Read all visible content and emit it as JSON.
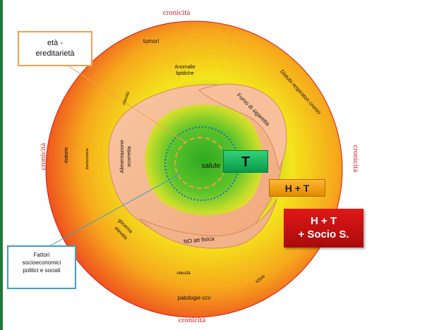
{
  "outer_labels": {
    "top": "cronicità",
    "left": "cronicità",
    "right": "cronicità",
    "bottom": "cronicità"
  },
  "ring_labels": {
    "tumori": "tumori",
    "anomalie_1": "Anomalie",
    "anomalie_2": "lipidiche",
    "obesita_top": "obesità",
    "distubi": "Distubi respiratori cronici",
    "diabete": "diabete",
    "ipertensione": "ipertensione",
    "glicemia_1": "glicemia",
    "glicemia_2": "elevata",
    "obesita_bottom": "obesità",
    "ictus": "ictus",
    "patologie": "patologie ccv"
  },
  "band_labels": {
    "fumo_1": "Fumo di sigaretta",
    "alimentazione_1": "Alimentazione",
    "alimentazione_2": "scorretta",
    "no_att": "NO att fisica"
  },
  "center_label": "salute",
  "boxes": {
    "eta_line1": "età -",
    "eta_line2": "ereditarietà",
    "fattori_line1": "Fattori",
    "fattori_line2": "socioeconomici",
    "fattori_line3": "politici e sociali"
  },
  "tags": {
    "t": "T",
    "ht": "H + T",
    "hts_line1": "H + T",
    "hts_line2": "+ Socio S."
  },
  "colors": {
    "outer_edge": "#e8281c",
    "mid": "#f7e21a",
    "center": "#2fb62a",
    "band": "#f5bb93",
    "t_tag": "#1dbf62",
    "ht_tag": "#f5a20c",
    "hts_tag": "#c81212"
  }
}
